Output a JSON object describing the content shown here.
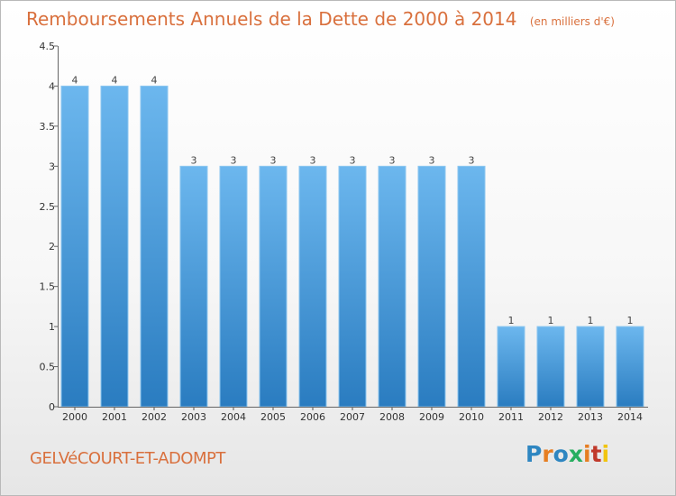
{
  "chart_data": {
    "type": "bar",
    "title": "Remboursements Annuels de la Dette de 2000 à 2014",
    "subtitle": "(en milliers d'€)",
    "categories": [
      "2000",
      "2001",
      "2002",
      "2003",
      "2004",
      "2005",
      "2006",
      "2007",
      "2008",
      "2009",
      "2010",
      "2011",
      "2012",
      "2013",
      "2014"
    ],
    "values": [
      4,
      4,
      4,
      3,
      3,
      3,
      3,
      3,
      3,
      3,
      3,
      1,
      1,
      1,
      1
    ],
    "ylim": [
      0,
      4.5
    ],
    "yticks": [
      "0",
      "0.5",
      "1",
      "1.5",
      "2",
      "2.5",
      "3",
      "3.5",
      "4",
      "4.5"
    ],
    "grid": false,
    "bar_color": "#4a9fdf"
  },
  "footer": {
    "city": "GELVéCOURT-ET-ADOMPT",
    "logo_letters": [
      "P",
      "r",
      "o",
      "x",
      "i",
      "t",
      "i"
    ]
  },
  "colors": {
    "accent": "#d9703d",
    "bar_top": "#6cb7ee",
    "bar_bottom": "#2a7cc0",
    "logo": [
      "#2e86c1",
      "#e67e22",
      "#2e86c1",
      "#27ae60",
      "#e67e22",
      "#c0392b",
      "#f1c40f"
    ]
  }
}
